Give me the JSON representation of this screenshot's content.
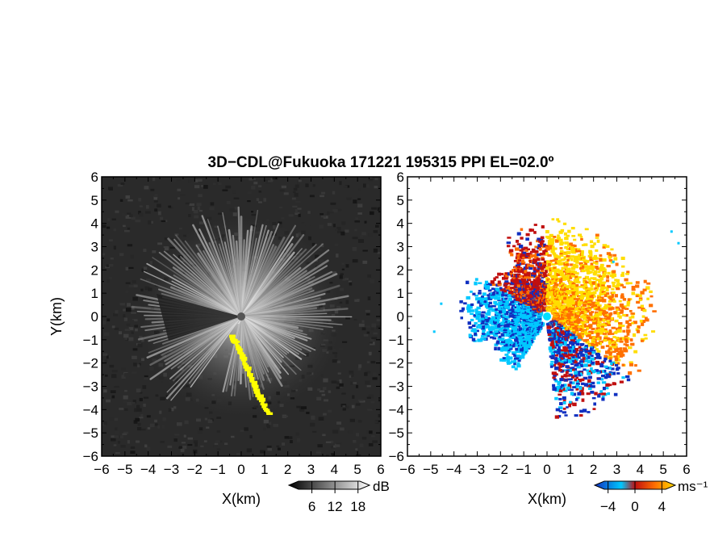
{
  "title": "3D−CDL@Fukuoka 171221 195315 PPI EL=02.0º",
  "chart_data": [
    {
      "type": "heatmap",
      "name": "reflectivity-ppi",
      "xlabel": "X(km)",
      "ylabel": "Y(km)",
      "xlim": [
        -6,
        6
      ],
      "ylim": [
        -6,
        6
      ],
      "x_ticks": [
        "−6",
        "−5",
        "−4",
        "−3",
        "−2",
        "−1",
        "0",
        "1",
        "2",
        "3",
        "4",
        "5",
        "6"
      ],
      "y_ticks": [
        "6",
        "5",
        "4",
        "3",
        "2",
        "1",
        "0",
        "−1",
        "−2",
        "−3",
        "−4",
        "−5",
        "−6"
      ],
      "background_color": "#2a2a2a",
      "highlight_color": "#ffff00",
      "highlight_path_km": [
        [
          -0.5,
          -0.85
        ],
        [
          -0.3,
          -1.1
        ],
        [
          0.0,
          -1.8
        ],
        [
          0.3,
          -2.5
        ],
        [
          0.6,
          -3.2
        ],
        [
          0.9,
          -3.8
        ],
        [
          1.15,
          -4.2
        ]
      ],
      "colorbar": {
        "unit": "dB",
        "tick_labels": [
          "6",
          "12",
          "18"
        ],
        "tick_values": [
          6,
          12,
          18
        ],
        "range": [
          0,
          21
        ],
        "colors": [
          "#000000",
          "#ffffff"
        ]
      }
    },
    {
      "type": "heatmap",
      "name": "doppler-velocity-ppi",
      "xlabel": "X(km)",
      "xlim": [
        -6,
        6
      ],
      "ylim": [
        -6,
        6
      ],
      "x_ticks": [
        "−6",
        "−5",
        "−4",
        "−3",
        "−2",
        "−1",
        "0",
        "1",
        "2",
        "3",
        "4",
        "5",
        "6"
      ],
      "y_ticks": [
        "6",
        "5",
        "4",
        "3",
        "2",
        "1",
        "0",
        "−1",
        "−2",
        "−3",
        "−4",
        "−5",
        "−6"
      ],
      "background_color": "#ffffff",
      "colorbar": {
        "unit": "ms⁻¹",
        "tick_labels": [
          "−4",
          "0",
          "4"
        ],
        "tick_values": [
          -4,
          0,
          4
        ],
        "range": [
          -6,
          6
        ],
        "colors": [
          "#1030c0",
          "#00c8ff",
          "#c01010",
          "#ff7000",
          "#ffdd00"
        ]
      }
    }
  ]
}
